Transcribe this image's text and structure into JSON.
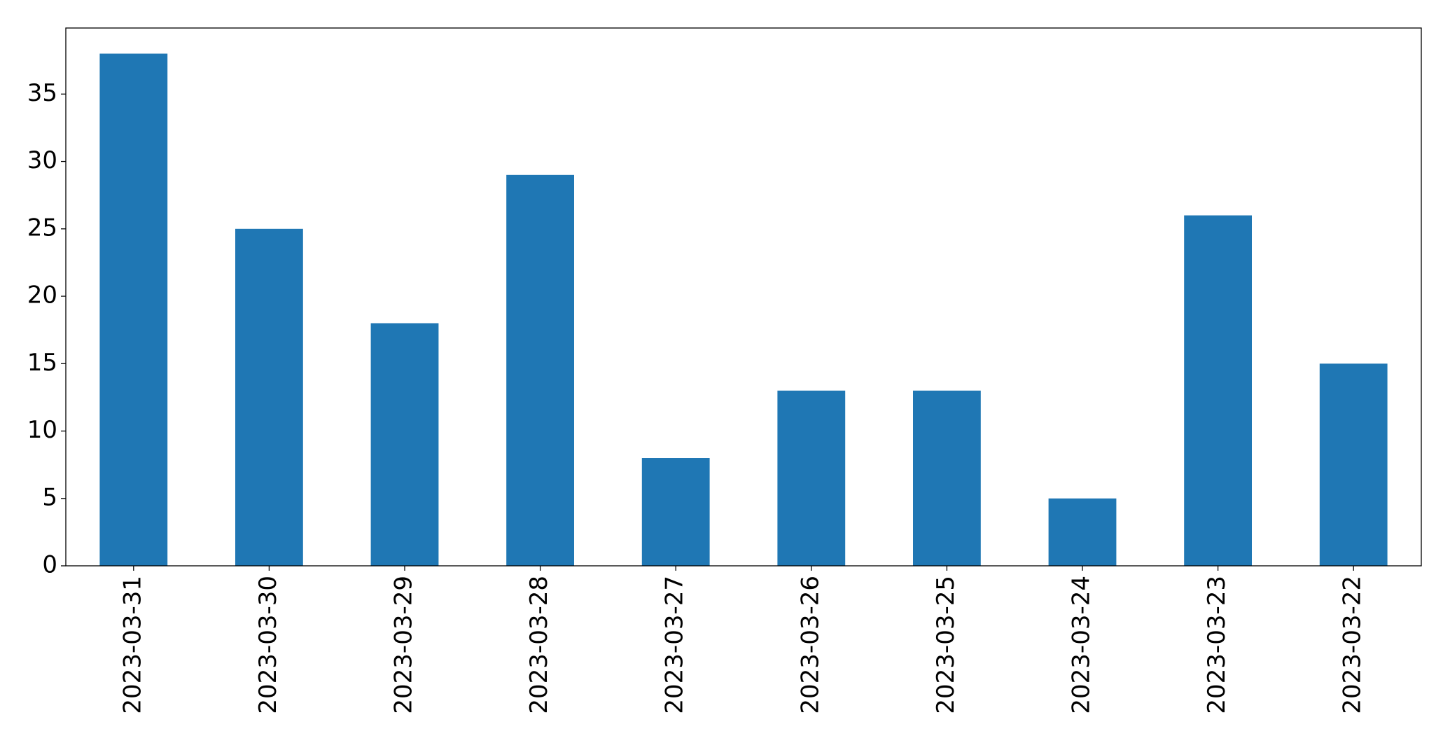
{
  "chart_data": {
    "type": "bar",
    "categories": [
      "2023-03-31",
      "2023-03-30",
      "2023-03-29",
      "2023-03-28",
      "2023-03-27",
      "2023-03-26",
      "2023-03-25",
      "2023-03-24",
      "2023-03-23",
      "2023-03-22"
    ],
    "values": [
      38,
      25,
      18,
      29,
      8,
      13,
      13,
      5,
      26,
      15
    ],
    "color": "#1f77b4",
    "ylim": [
      0,
      39.9
    ],
    "yticks": [
      0,
      5,
      10,
      15,
      20,
      25,
      30,
      35
    ],
    "grid": false
  }
}
